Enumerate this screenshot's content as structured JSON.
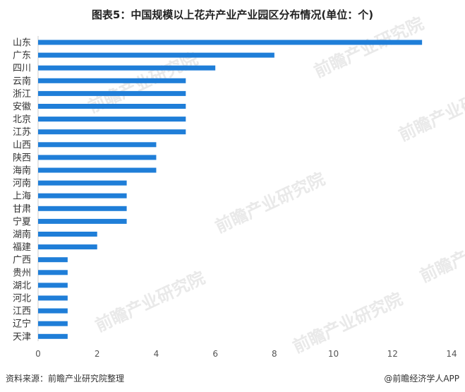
{
  "chart_data": {
    "type": "bar",
    "orientation": "horizontal",
    "title": "图表5：中国规模以上花卉产业产业园区分布情况(单位：个)",
    "categories": [
      "山东",
      "广东",
      "四川",
      "云南",
      "浙江",
      "安徽",
      "北京",
      "江苏",
      "山西",
      "陕西",
      "海南",
      "河南",
      "上海",
      "甘肃",
      "宁夏",
      "湖南",
      "福建",
      "广西",
      "贵州",
      "湖北",
      "河北",
      "江西",
      "辽宁",
      "天津"
    ],
    "values": [
      13,
      8,
      6,
      5,
      5,
      5,
      5,
      5,
      4,
      4,
      4,
      3,
      3,
      3,
      3,
      2,
      2,
      1,
      1,
      1,
      1,
      1,
      1,
      1
    ],
    "xlim": [
      0,
      14
    ],
    "xticks": [
      0,
      2,
      4,
      6,
      8,
      10,
      12,
      14
    ],
    "grid": false,
    "bar_color": "#1f7ed8"
  },
  "watermark": "前瞻产业研究院",
  "footer": {
    "source": "资料来源：前瞻产业研究院整理",
    "brand": "@前瞻经济学人APP"
  }
}
